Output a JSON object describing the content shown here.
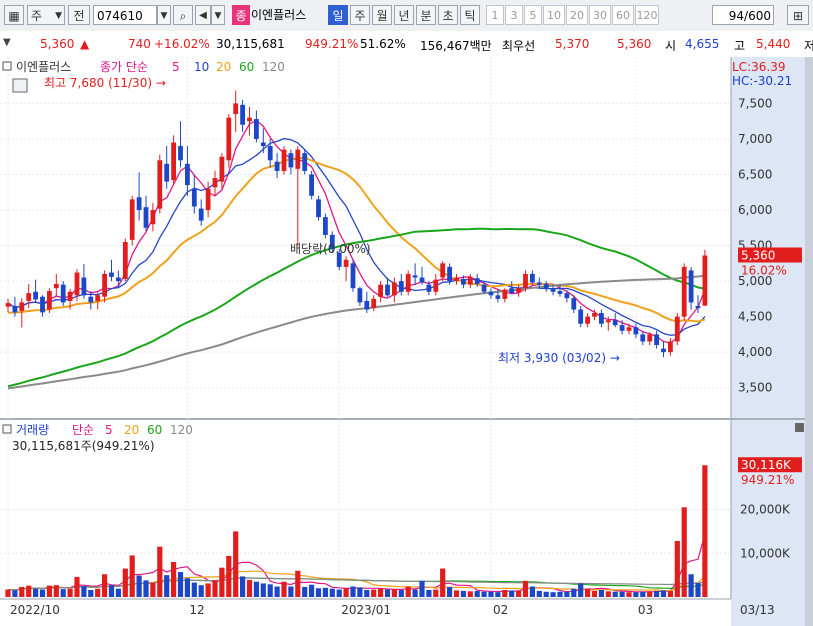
{
  "toolbar": {
    "type_label": "주",
    "prev_label": "전",
    "code": "074610",
    "badge_label": "종",
    "stock_name": "이엔플러스",
    "periods": [
      "일",
      "주",
      "월",
      "년",
      "분",
      "초",
      "틱"
    ],
    "active_period": "일",
    "intervals": [
      "1",
      "3",
      "5",
      "10",
      "20",
      "30",
      "60",
      "120"
    ],
    "count_value": "94",
    "count_total": "/600"
  },
  "quote": {
    "price": "5,360",
    "change_arrow": "▲",
    "change": "740",
    "change_pct": "+16.02%",
    "volume": "30,115,681",
    "volume_ratio": "949.21%",
    "turnover": "51.62%",
    "amount": "156,467백만",
    "best_ask_label": "최우선",
    "best_ask": "5,370",
    "best_bid": "5,360",
    "open_label": "시",
    "open": "4,655",
    "high_label": "고",
    "high": "5,440",
    "low_label": "저"
  },
  "colors": {
    "up": "#e21d1d",
    "down": "#1d47c9",
    "ma5": "#e0178a",
    "ma10": "#2646c8",
    "ma20": "#f0a21c",
    "ma60": "#1aa51a",
    "ma120": "#8a8a8a"
  },
  "price_panel": {
    "legend_name": "이엔플러스",
    "legend_prefix": "종가 단순",
    "legend_periods": [
      "5",
      "10",
      "20",
      "60",
      "120"
    ],
    "lc_label": "LC:36.39",
    "hc_label": "HC:-30.21",
    "high_note": "최고 7,680 (11/30) →",
    "low_note": "최저 3,930 (03/02) →",
    "event_label": "배당락(0.00%)",
    "last_price_tag": "5,360",
    "last_change_tag": "16.02%"
  },
  "volume_panel": {
    "legend_name": "거래량",
    "legend_prefix": "단순",
    "legend_periods": [
      "5",
      "20",
      "60",
      "120"
    ],
    "info_label": "30,115,681주(949.21%)",
    "last_volume_tag": "30,116K",
    "last_ratio_tag": "949.21%"
  },
  "x_axis_labels": [
    "2022/10",
    "12",
    "2023/01",
    "02",
    "03",
    "03/13"
  ],
  "chart_data": {
    "type": "candlestick",
    "price_ylim": [
      3200,
      7900
    ],
    "price_yticks": [
      3500,
      4000,
      4500,
      5000,
      5500,
      6000,
      6500,
      7000,
      7500
    ],
    "price_ytick_labels": [
      "3,500",
      "4,000",
      "4,500",
      "5,000",
      "5,500",
      "6,000",
      "6,500",
      "7,000",
      "7,500"
    ],
    "volume_ylim": [
      0,
      32000
    ],
    "volume_yticks": [
      10000,
      20000
    ],
    "volume_ytick_labels": [
      "10,000K",
      "20,000K"
    ],
    "x_label_dates": [
      "2022/10",
      "12",
      "2023/01",
      "02",
      "03",
      "03/13"
    ],
    "candles": [
      [
        4640,
        4750,
        4560,
        4690,
        1700
      ],
      [
        4650,
        4780,
        4500,
        4560,
        1500
      ],
      [
        4580,
        4760,
        4350,
        4700,
        2300
      ],
      [
        4720,
        4960,
        4620,
        4830,
        2600
      ],
      [
        4850,
        5020,
        4700,
        4740,
        1900
      ],
      [
        4780,
        4800,
        4500,
        4560,
        1700
      ],
      [
        4600,
        4900,
        4550,
        4860,
        2600
      ],
      [
        4900,
        5100,
        4780,
        4960,
        2700
      ],
      [
        4950,
        5000,
        4650,
        4700,
        1800
      ],
      [
        4720,
        4890,
        4600,
        4850,
        1900
      ],
      [
        4800,
        5170,
        4720,
        5120,
        4600
      ],
      [
        5050,
        5240,
        4750,
        4800,
        2500
      ],
      [
        4780,
        4860,
        4600,
        4700,
        1600
      ],
      [
        4720,
        4840,
        4600,
        4800,
        1900
      ],
      [
        4780,
        5150,
        4700,
        5100,
        5200
      ],
      [
        5120,
        5300,
        5000,
        5060,
        2700
      ],
      [
        5050,
        5150,
        4900,
        5000,
        1900
      ],
      [
        5030,
        5600,
        5000,
        5550,
        6500
      ],
      [
        5580,
        6200,
        5500,
        6150,
        9500
      ],
      [
        6180,
        6530,
        5850,
        6000,
        4900
      ],
      [
        6040,
        6200,
        5700,
        5750,
        3800
      ],
      [
        5800,
        6100,
        5700,
        6000,
        3300
      ],
      [
        6020,
        6780,
        5950,
        6700,
        11500
      ],
      [
        6650,
        6900,
        6300,
        6400,
        5000
      ],
      [
        6420,
        7050,
        6350,
        6950,
        8000
      ],
      [
        6900,
        7250,
        6600,
        6700,
        5700
      ],
      [
        6650,
        6900,
        6200,
        6350,
        4300
      ],
      [
        6300,
        6500,
        5950,
        6050,
        3300
      ],
      [
        6020,
        6150,
        5780,
        5850,
        2700
      ],
      [
        6000,
        6400,
        5900,
        6300,
        3100
      ],
      [
        6320,
        6550,
        6200,
        6450,
        3800
      ],
      [
        6400,
        6800,
        6300,
        6750,
        6700
      ],
      [
        6700,
        7350,
        6600,
        7300,
        9400
      ],
      [
        7350,
        7680,
        7100,
        7500,
        15000
      ],
      [
        7480,
        7550,
        7100,
        7200,
        4700
      ],
      [
        7250,
        7450,
        7050,
        7300,
        3900
      ],
      [
        7280,
        7400,
        6950,
        7000,
        3500
      ],
      [
        6950,
        7150,
        6800,
        6900,
        3100
      ],
      [
        6900,
        7000,
        6600,
        6700,
        2900
      ],
      [
        6680,
        6800,
        6450,
        6550,
        2400
      ],
      [
        6550,
        6900,
        6500,
        6850,
        3500
      ],
      [
        6800,
        6850,
        6500,
        6600,
        2400
      ],
      [
        6580,
        6900,
        5500,
        6850,
        6000
      ],
      [
        6800,
        6850,
        6500,
        6550,
        2300
      ],
      [
        6500,
        6550,
        6150,
        6200,
        2800
      ],
      [
        6150,
        6200,
        5850,
        5900,
        2000
      ],
      [
        5900,
        5950,
        5600,
        5650,
        2100
      ],
      [
        5650,
        5700,
        5400,
        5450,
        1900
      ],
      [
        5400,
        5450,
        5150,
        5200,
        1700
      ],
      [
        5200,
        5350,
        5000,
        5300,
        2000
      ],
      [
        5250,
        5300,
        4850,
        4900,
        2400
      ],
      [
        4900,
        4920,
        4650,
        4700,
        2200
      ],
      [
        4720,
        4850,
        4550,
        4600,
        1600
      ],
      [
        4620,
        4800,
        4580,
        4750,
        1700
      ],
      [
        4780,
        5000,
        4700,
        4950,
        1900
      ],
      [
        4950,
        5050,
        4780,
        4800,
        1700
      ],
      [
        4800,
        5050,
        4700,
        4980,
        1800
      ],
      [
        5000,
        5100,
        4800,
        4850,
        1600
      ],
      [
        4850,
        5150,
        4800,
        5100,
        2400
      ],
      [
        5080,
        5250,
        4950,
        5050,
        1700
      ],
      [
        5050,
        5200,
        4950,
        4980,
        3700
      ],
      [
        4950,
        5000,
        4800,
        4850,
        1600
      ],
      [
        4850,
        5100,
        4800,
        5020,
        1700
      ],
      [
        5050,
        5280,
        5000,
        5250,
        6500
      ],
      [
        5200,
        5250,
        4950,
        5000,
        2300
      ],
      [
        5000,
        5100,
        4950,
        5050,
        1500
      ],
      [
        5030,
        5080,
        4900,
        4950,
        1400
      ],
      [
        4950,
        5100,
        4900,
        5050,
        1300
      ],
      [
        5040,
        5100,
        4920,
        4960,
        1400
      ],
      [
        4950,
        5000,
        4820,
        4850,
        1200
      ],
      [
        4850,
        4900,
        4750,
        4800,
        1200
      ],
      [
        4800,
        4880,
        4700,
        4750,
        1100
      ],
      [
        4750,
        4900,
        4700,
        4880,
        1600
      ],
      [
        4900,
        5000,
        4820,
        4830,
        1500
      ],
      [
        4840,
        4950,
        4780,
        4900,
        1500
      ],
      [
        4900,
        5150,
        4850,
        5100,
        3700
      ],
      [
        5100,
        5150,
        4950,
        4980,
        2400
      ],
      [
        4980,
        5050,
        4900,
        4950,
        1400
      ],
      [
        4960,
        5000,
        4850,
        4900,
        1200
      ],
      [
        4900,
        4950,
        4800,
        4850,
        1100
      ],
      [
        4860,
        4950,
        4780,
        4820,
        1200
      ],
      [
        4830,
        4870,
        4700,
        4760,
        1200
      ],
      [
        4760,
        4800,
        4550,
        4600,
        1900
      ],
      [
        4600,
        4650,
        4350,
        4400,
        3100
      ],
      [
        4400,
        4550,
        4350,
        4500,
        1800
      ],
      [
        4500,
        4600,
        4450,
        4550,
        1400
      ],
      [
        4550,
        4600,
        4350,
        4400,
        1600
      ],
      [
        4420,
        4500,
        4300,
        4450,
        1300
      ],
      [
        4450,
        4550,
        4350,
        4380,
        1200
      ],
      [
        4380,
        4450,
        4250,
        4300,
        1200
      ],
      [
        4300,
        4400,
        4250,
        4350,
        1100
      ],
      [
        4350,
        4400,
        4200,
        4250,
        1100
      ],
      [
        4250,
        4300,
        4100,
        4150,
        1200
      ],
      [
        4150,
        4280,
        4100,
        4250,
        1300
      ],
      [
        4250,
        4300,
        4050,
        4100,
        1400
      ],
      [
        4050,
        4150,
        3930,
        4000,
        1500
      ],
      [
        4000,
        4200,
        3950,
        4150,
        1400
      ],
      [
        4150,
        4550,
        4100,
        4500,
        12800
      ],
      [
        4500,
        5250,
        4450,
        5200,
        20500
      ],
      [
        5150,
        5200,
        4600,
        4700,
        5200
      ],
      [
        4650,
        4800,
        4550,
        4620,
        3200
      ],
      [
        4655,
        5440,
        4650,
        5360,
        30116
      ]
    ],
    "series": [
      {
        "name": "5",
        "values": []
      },
      {
        "name": "10",
        "values": []
      },
      {
        "name": "20",
        "values": []
      },
      {
        "name": "60",
        "values": []
      },
      {
        "name": "120",
        "values": []
      }
    ]
  }
}
